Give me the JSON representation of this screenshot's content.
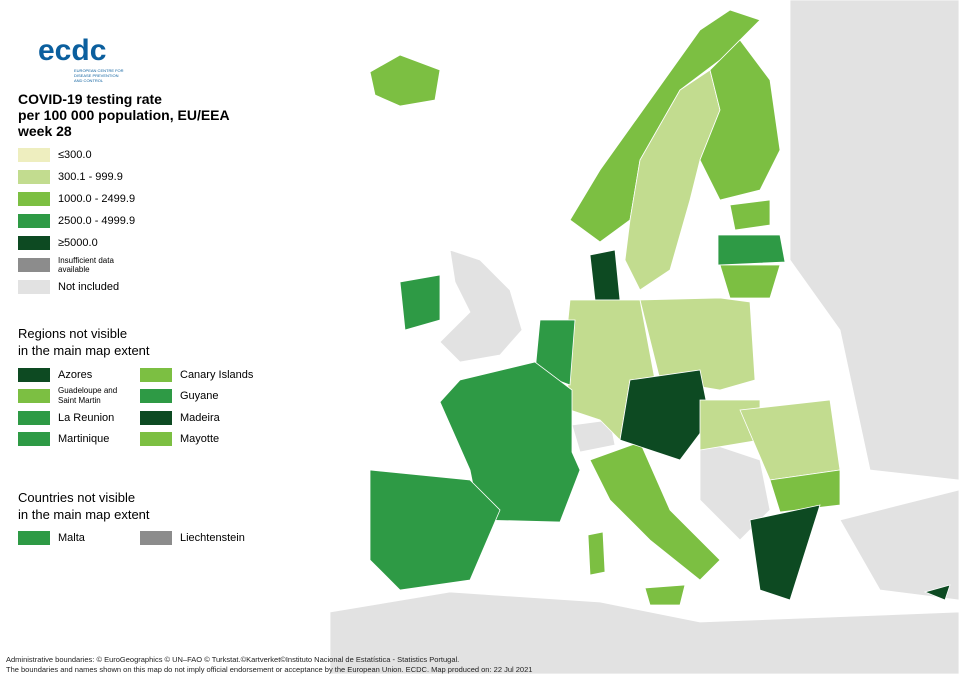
{
  "logo": {
    "name": "ecdc",
    "subtitle": "EUROPEAN CENTRE FOR DISEASE PREVENTION AND CONTROL"
  },
  "title": [
    "COVID-19 testing rate",
    "per 100 000 population, EU/EEA",
    "week 28"
  ],
  "legend": [
    {
      "label": "≤300.0",
      "color": "#eeeebf"
    },
    {
      "label": "300.1 - 999.9",
      "color": "#c2dc8f"
    },
    {
      "label": "1000.0 - 2499.9",
      "color": "#7cbf42"
    },
    {
      "label": "2500.0 - 4999.9",
      "color": "#2e9a45"
    },
    {
      "label": "≥5000.0",
      "color": "#0d4a22"
    },
    {
      "label": "Insufficient data available",
      "color": "#8c8c8c"
    },
    {
      "label": "Not included",
      "color": "#e2e2e2"
    }
  ],
  "regions": {
    "title": [
      "Regions not visible",
      "in the main map extent"
    ],
    "items": [
      {
        "label": "Azores",
        "color": "#0d4a22"
      },
      {
        "label": "Canary Islands",
        "color": "#7cbf42"
      },
      {
        "label": "Guadeloupe and Saint Martin",
        "color": "#7cbf42"
      },
      {
        "label": "Guyane",
        "color": "#2e9a45"
      },
      {
        "label": "La Reunion",
        "color": "#2e9a45"
      },
      {
        "label": "Madeira",
        "color": "#0d4a22"
      },
      {
        "label": "Martinique",
        "color": "#2e9a45"
      },
      {
        "label": "Mayotte",
        "color": "#7cbf42"
      }
    ]
  },
  "countries": {
    "title": [
      "Countries not visible",
      "in the main map extent"
    ],
    "items": [
      {
        "label": "Malta",
        "color": "#2e9a45"
      },
      {
        "label": "Liechtenstein",
        "color": "#8c8c8c"
      }
    ]
  },
  "footer": [
    "Administrative boundaries: © EuroGeographics © UN–FAO © Turkstat.©Kartverket©Instituto Nacional de Estatística - Statistics Portugal.",
    "The boundaries and names shown on this map do not imply official endorsement or acceptance by the European Union. ECDC. Map produced on: 22 Jul 2021"
  ]
}
